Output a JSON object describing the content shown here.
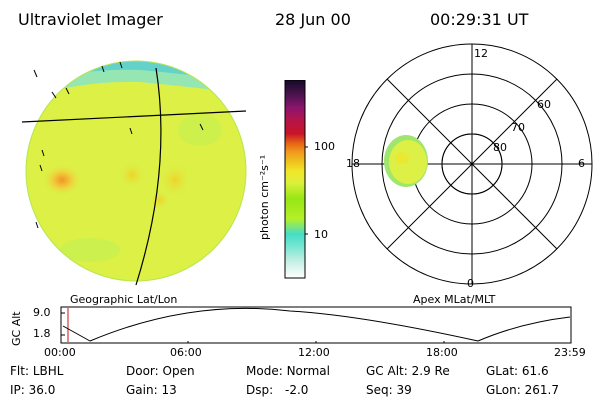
{
  "header": {
    "title": "Ultraviolet Imager",
    "date": "28 Jun 00",
    "time": "00:29:31 UT"
  },
  "colorbar": {
    "unit_label": "photon cm⁻²s⁻¹",
    "tick_100": "100",
    "tick_10": "10",
    "colors": [
      "#ffffff",
      "#c8f0e6",
      "#78e6d2",
      "#46dcc8",
      "#b4f028",
      "#96e614",
      "#dcf03c",
      "#f0e628",
      "#f0c81e",
      "#f0961e",
      "#e66414",
      "#c81428",
      "#b4144b",
      "#8c146e",
      "#501450",
      "#140a28"
    ]
  },
  "left_panel": {
    "caption": "Geographic Lat/Lon"
  },
  "right_panel": {
    "caption": "Apex MLat/MLT",
    "mlt_labels": {
      "top": "12",
      "right": "6",
      "bottom": "0",
      "left": "18"
    },
    "lat_labels": [
      "60",
      "70",
      "80"
    ]
  },
  "altitude_plot": {
    "axis_label": "GC Alt",
    "y_ticks": [
      "9.0",
      "1.8"
    ],
    "x_ticks": [
      "00:00",
      "06:00",
      "12:00",
      "18:00",
      "23:59"
    ]
  },
  "status": {
    "flt_label": "Flt:",
    "flt_value": "LBHL",
    "ip_label": "IP:",
    "ip_value": "36.0",
    "door_label": "Door:",
    "door_value": "Open",
    "gain_label": "Gain:",
    "gain_value": "13",
    "mode_label": "Mode:",
    "mode_value": "Normal",
    "dsp_label": "Dsp:",
    "dsp_value": "-2.0",
    "gcalt_label": "GC Alt:",
    "gcalt_value": "2.9 Re",
    "seq_label": "Seq:",
    "seq_value": "39",
    "glat_label": "GLat:",
    "glat_value": "61.6",
    "glon_label": "GLon:",
    "glon_value": "261.7"
  }
}
